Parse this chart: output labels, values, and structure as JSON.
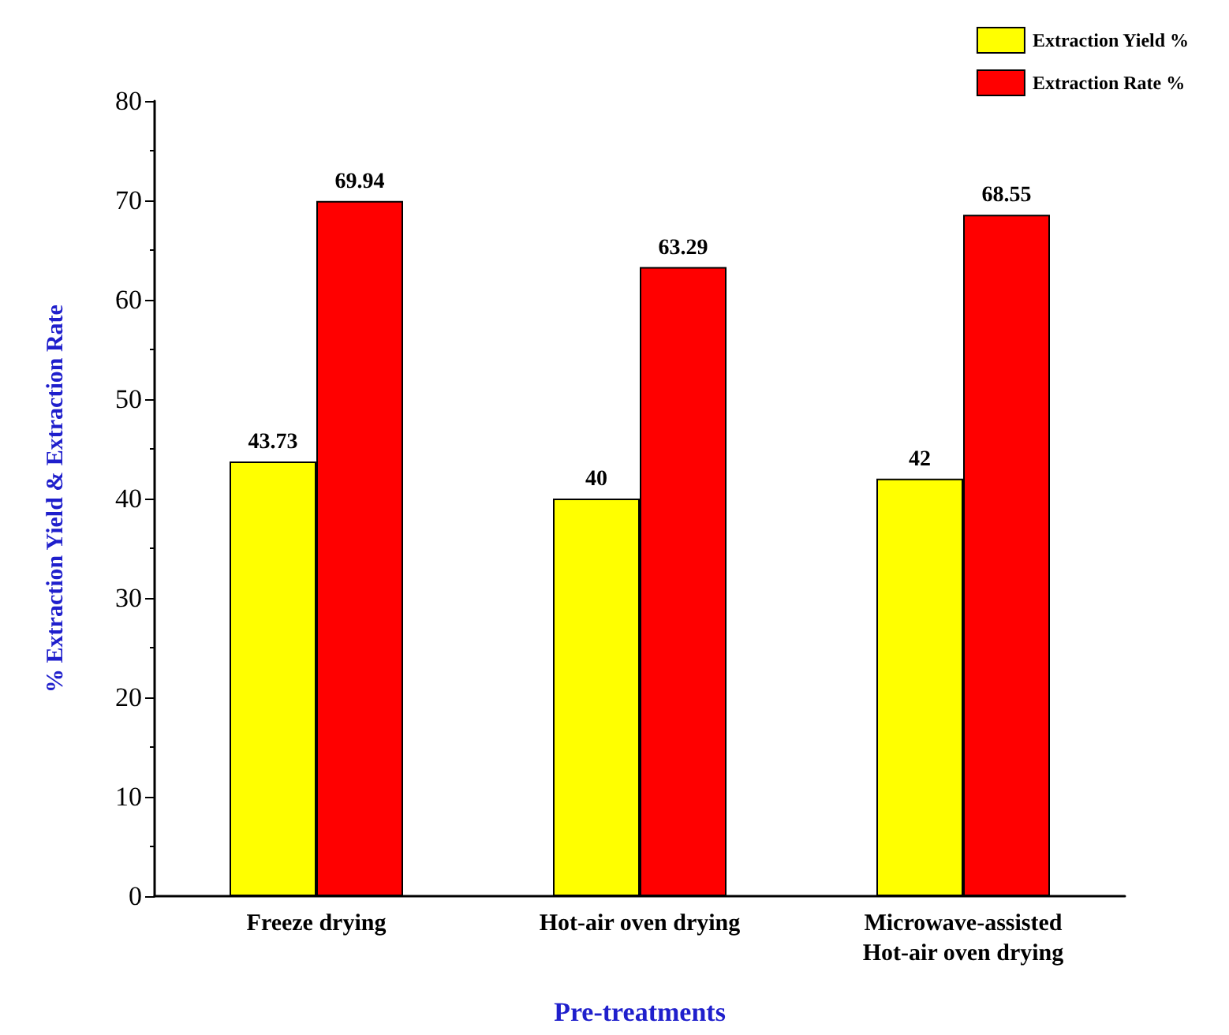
{
  "chart_data": {
    "type": "bar",
    "xlabel": "Pre-treatments",
    "ylabel": "% Extraction Yield & Extraction Rate",
    "categories": [
      "Freeze drying",
      "Hot-air oven drying",
      "Microwave-assisted\nHot-air oven drying"
    ],
    "series": [
      {
        "name": "Extraction Yield %",
        "color": "#ffff00",
        "values": [
          43.73,
          40,
          42
        ]
      },
      {
        "name": "Extraction Rate %",
        "color": "#ff0000",
        "values": [
          69.94,
          63.29,
          68.55
        ]
      }
    ],
    "ylim": [
      0,
      80
    ],
    "yticks": [
      0,
      10,
      20,
      30,
      40,
      50,
      60,
      70,
      80
    ],
    "grid": false,
    "legend": "top right",
    "data_labels": true
  }
}
